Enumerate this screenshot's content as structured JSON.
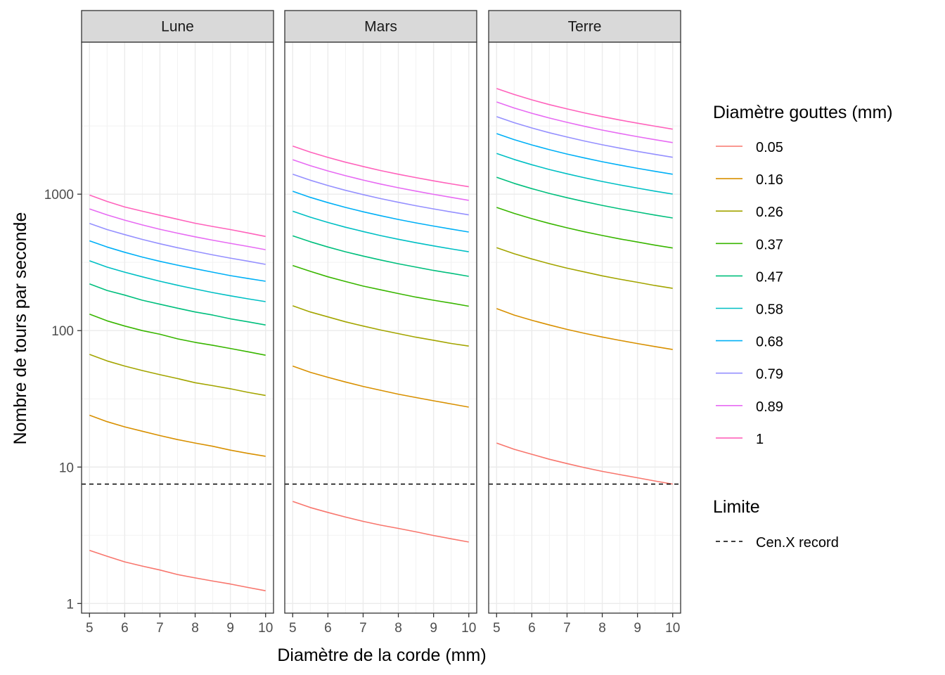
{
  "chart_data": {
    "type": "line",
    "xlabel": "Diamètre de la corde (mm)",
    "ylabel": "Nombre de tours par seconde",
    "xlim": [
      5,
      10
    ],
    "ylim": [
      0.85,
      13000
    ],
    "y_scale": "log10",
    "grid": true,
    "legend_placement": "right",
    "x_ticks": [
      5,
      6,
      7,
      8,
      9,
      10
    ],
    "x_tick_labels": [
      "5",
      "6",
      "7",
      "8",
      "9",
      "10"
    ],
    "y_ticks": [
      1,
      10,
      100,
      1000
    ],
    "y_tick_labels": [
      "1",
      "10",
      "100",
      "1000"
    ],
    "x": [
      5,
      5.5,
      6,
      6.5,
      7,
      7.5,
      8,
      8.5,
      9,
      9.5,
      10
    ],
    "panels": [
      {
        "name": "Lune",
        "series": [
          {
            "name": "0.05",
            "values": [
              2.45,
              2.22,
              2.02,
              1.88,
              1.76,
              1.63,
              1.54,
              1.46,
              1.39,
              1.31,
              1.24
            ]
          },
          {
            "name": "0.16",
            "values": [
              24,
              21.5,
              19.7,
              18.3,
              17.0,
              15.9,
              15.0,
              14.2,
              13.3,
              12.6,
              12.0
            ]
          },
          {
            "name": "0.26",
            "values": [
              67,
              60,
              55,
              51,
              47.5,
              44.5,
              41.5,
              39.5,
              37.5,
              35.3,
              33.5
            ]
          },
          {
            "name": "0.37",
            "values": [
              132,
              118,
              108,
              100,
              94,
              87,
              82,
              78,
              74,
              70,
              66
            ]
          },
          {
            "name": "0.47",
            "values": [
              220,
              197,
              182,
              167,
              156,
              146,
              137,
              130,
              122,
              116,
              110
            ]
          },
          {
            "name": "0.58",
            "values": [
              325,
              292,
              268,
              248,
              230,
              215,
              202,
              190,
              180,
              171,
              163
            ]
          },
          {
            "name": "0.68",
            "values": [
              455,
              410,
              375,
              346,
              322,
              302,
              284,
              268,
              253,
              241,
              230
            ]
          },
          {
            "name": "0.79",
            "values": [
              610,
              550,
              505,
              466,
              433,
              405,
              381,
              359,
              340,
              323,
              306
            ]
          },
          {
            "name": "0.89",
            "values": [
              780,
              705,
              645,
              595,
              553,
              518,
              487,
              460,
              436,
              414,
              392
            ]
          },
          {
            "name": "1",
            "values": [
              985,
              885,
              805,
              750,
              700,
              655,
              612,
              580,
              550,
              520,
              490
            ]
          }
        ]
      },
      {
        "name": "Mars",
        "series": [
          {
            "name": "0.05",
            "values": [
              5.6,
              5.05,
              4.65,
              4.3,
              4.0,
              3.75,
              3.55,
              3.35,
              3.15,
              2.98,
              2.82
            ]
          },
          {
            "name": "0.16",
            "values": [
              55,
              49.5,
              45.5,
              42,
              39,
              36.5,
              34.2,
              32.3,
              30.6,
              29,
              27.5
            ]
          },
          {
            "name": "0.26",
            "values": [
              152,
              137,
              126,
              116,
              108,
              101,
              95,
              89.5,
              85,
              80.5,
              77
            ]
          },
          {
            "name": "0.37",
            "values": [
              300,
              272,
              248,
              229,
              212,
              199,
              187,
              176,
              167,
              159,
              151
            ]
          },
          {
            "name": "0.47",
            "values": [
              495,
              448,
              410,
              378,
              352,
              329,
              309,
              292,
              276,
              263,
              250
            ]
          },
          {
            "name": "0.58",
            "values": [
              750,
              678,
              620,
              572,
              532,
              497,
              467,
              441,
              418,
              397,
              378
            ]
          },
          {
            "name": "0.68",
            "values": [
              1050,
              948,
              867,
              800,
              743,
              695,
              653,
              616,
              584,
              555,
              528
            ]
          },
          {
            "name": "0.79",
            "values": [
              1400,
              1265,
              1157,
              1067,
              992,
              928,
              872,
              823,
              780,
              741,
              705
            ]
          },
          {
            "name": "0.89",
            "values": [
              1790,
              1618,
              1480,
              1365,
              1268,
              1186,
              1115,
              1053,
              997,
              947,
              902
            ]
          },
          {
            "name": "1",
            "values": [
              2250,
              2033,
              1860,
              1715,
              1595,
              1490,
              1400,
              1323,
              1253,
              1190,
              1133
            ]
          }
        ]
      },
      {
        "name": "Terre",
        "series": [
          {
            "name": "0.05",
            "values": [
              15,
              13.5,
              12.4,
              11.4,
              10.6,
              9.9,
              9.3,
              8.8,
              8.35,
              7.9,
              7.5
            ]
          },
          {
            "name": "0.16",
            "values": [
              145,
              130,
              119,
              110,
              102,
              95.5,
              89.8,
              84.8,
              80.4,
              76.4,
              72.7
            ]
          },
          {
            "name": "0.26",
            "values": [
              405,
              366,
              335,
              309,
              287,
              269,
              252,
              238,
              226,
              214,
              204
            ]
          },
          {
            "name": "0.37",
            "values": [
              800,
              723,
              661,
              610,
              567,
              530,
              498,
              470,
              446,
              423,
              403
            ]
          },
          {
            "name": "0.47",
            "values": [
              1330,
              1200,
              1098,
              1013,
              942,
              881,
              828,
              781,
              740,
              703,
              669
            ]
          },
          {
            "name": "0.58",
            "values": [
              1990,
              1797,
              1644,
              1516,
              1410,
              1318,
              1239,
              1169,
              1108,
              1052,
              1002
            ]
          },
          {
            "name": "0.68",
            "values": [
              2780,
              2510,
              2296,
              2118,
              1969,
              1841,
              1730,
              1633,
              1547,
              1470,
              1400
            ]
          },
          {
            "name": "0.79",
            "values": [
              3700,
              3342,
              3057,
              2820,
              2622,
              2451,
              2303,
              2174,
              2060,
              1957,
              1863
            ]
          },
          {
            "name": "0.89",
            "values": [
              4740,
              4281,
              3916,
              3613,
              3359,
              3140,
              2950,
              2785,
              2639,
              2507,
              2387
            ]
          },
          {
            "name": "1",
            "values": [
              5950,
              5374,
              4916,
              4535,
              4216,
              3942,
              3703,
              3496,
              3312,
              3147,
              2996
            ]
          }
        ]
      }
    ],
    "reference_lines": [
      {
        "name": "Cen.X record",
        "y": 7.5,
        "linetype": "dashed",
        "color": "#000000"
      }
    ],
    "legends": [
      {
        "title": "Diamètre gouttes (mm)",
        "entries": [
          {
            "label": "0.05",
            "color": "#F8766D"
          },
          {
            "label": "0.16",
            "color": "#D89000"
          },
          {
            "label": "0.26",
            "color": "#A3A500"
          },
          {
            "label": "0.37",
            "color": "#39B600"
          },
          {
            "label": "0.47",
            "color": "#00BF7D"
          },
          {
            "label": "0.58",
            "color": "#00BFC4"
          },
          {
            "label": "0.68",
            "color": "#00B0F6"
          },
          {
            "label": "0.79",
            "color": "#9590FF"
          },
          {
            "label": "0.89",
            "color": "#E76BF3"
          },
          {
            "label": "1",
            "color": "#FF62BC"
          }
        ]
      },
      {
        "title": "Limite",
        "entries": [
          {
            "label": "Cen.X record",
            "color": "#000000",
            "linetype": "dashed"
          }
        ]
      }
    ]
  }
}
